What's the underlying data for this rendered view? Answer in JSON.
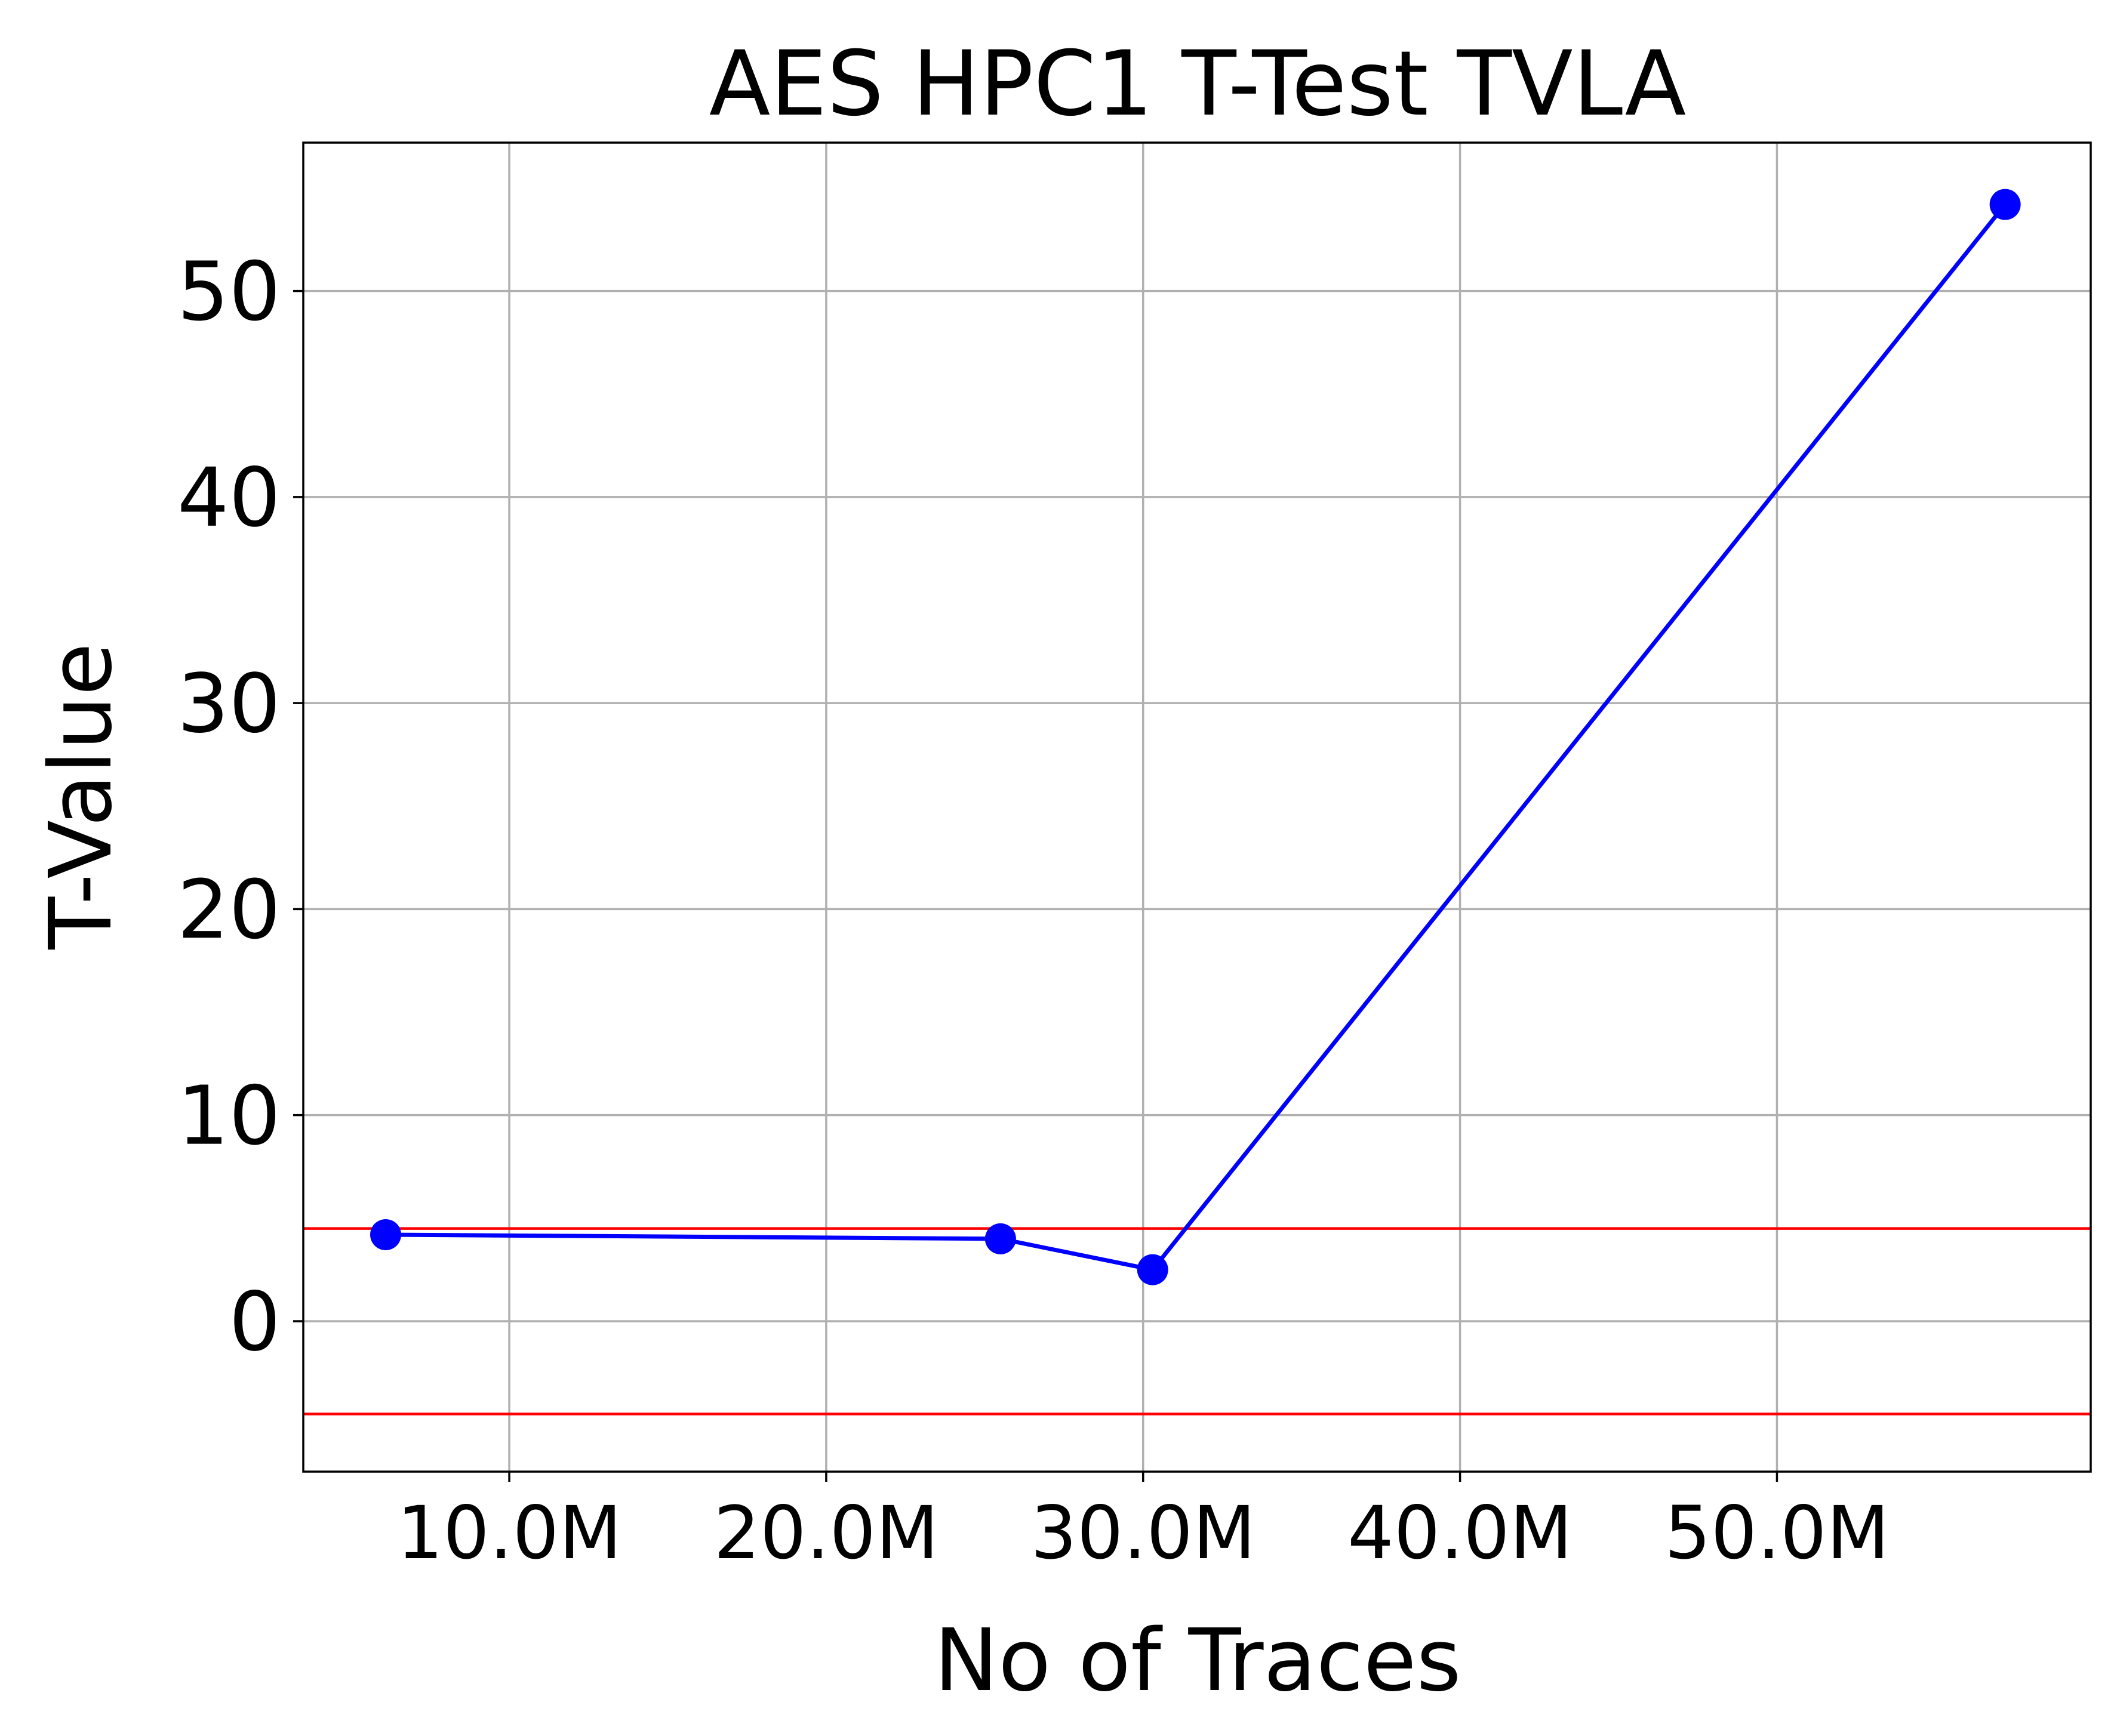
{
  "chart_data": {
    "type": "line",
    "title": "AES HPC1 T-Test TVLA",
    "xlabel": "No of Traces",
    "ylabel": "T-Value",
    "x_tick_labels": [
      "10.0M",
      "20.0M",
      "30.0M",
      "40.0M",
      "50.0M"
    ],
    "x_ticks": [
      10000000,
      20000000,
      30000000,
      40000000,
      50000000
    ],
    "y_tick_labels": [
      "0",
      "10",
      "20",
      "30",
      "40",
      "50"
    ],
    "y_ticks": [
      0,
      10,
      20,
      30,
      40,
      50
    ],
    "xlim": [
      3500000,
      59900000
    ],
    "ylim": [
      -7.3,
      57.2
    ],
    "grid": true,
    "series": [
      {
        "x": [
          6100000,
          25500000,
          30300000,
          57200000
        ],
        "y": [
          4.2,
          4.0,
          2.5,
          54.2
        ],
        "color": "#0000ff",
        "marker": "circle"
      }
    ],
    "threshold_lines": [
      {
        "y": 4.5,
        "color": "#ff0000"
      },
      {
        "y": -4.5,
        "color": "#ff0000"
      }
    ]
  }
}
